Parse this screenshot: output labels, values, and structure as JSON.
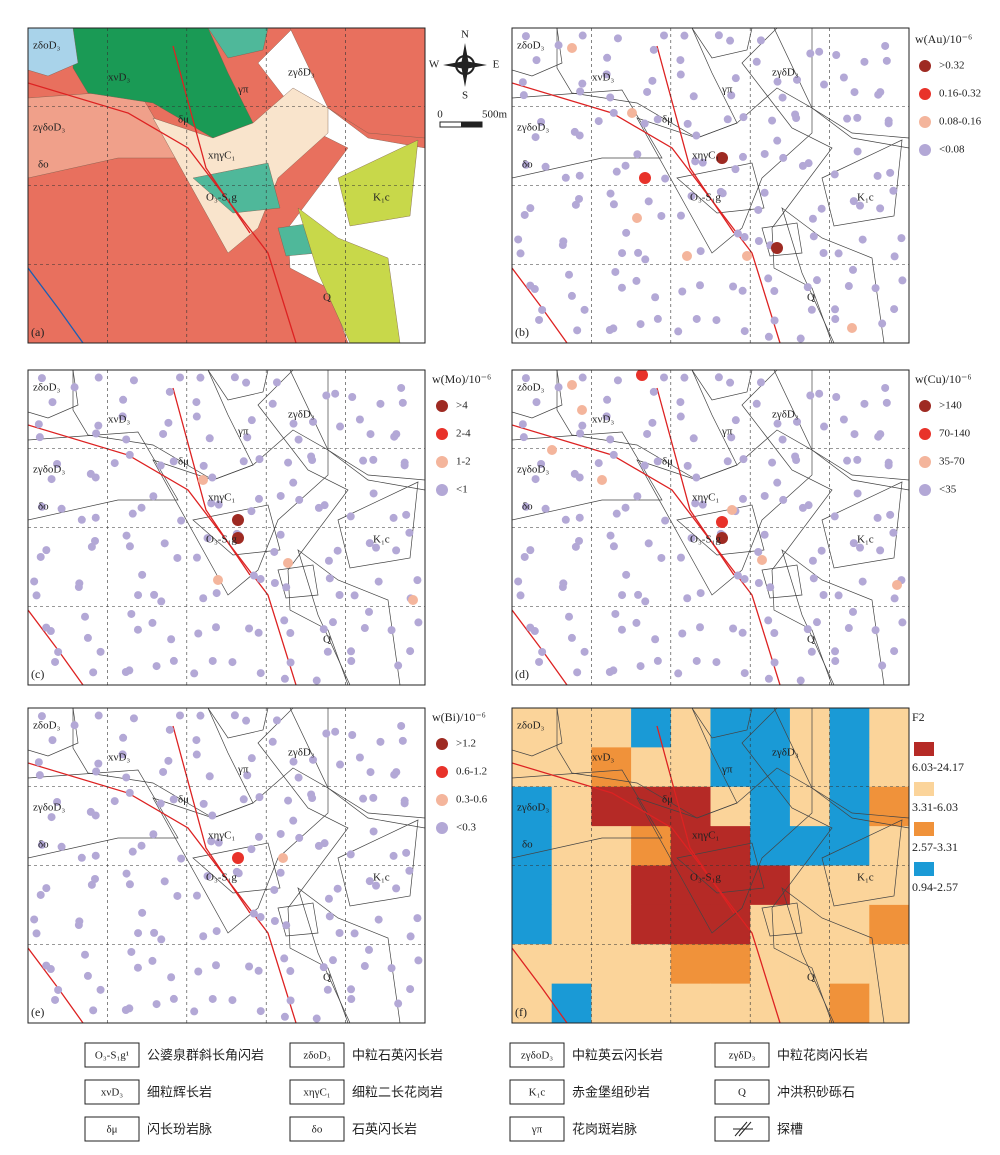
{
  "map_labels": [
    "zδoD₃",
    "xνD₃",
    "zγδoD₃",
    "δo",
    "δμ",
    "γπ",
    "zγδD₃",
    "xηγC₁",
    "O₃-S₁g",
    "K₁c",
    "Q"
  ],
  "panels": [
    {
      "letter": "(a)"
    },
    {
      "letter": "(b)"
    },
    {
      "letter": "(c)"
    },
    {
      "letter": "(d)"
    },
    {
      "letter": "(e)"
    },
    {
      "letter": "(f)"
    }
  ],
  "compass": {
    "north": "N",
    "south": "S",
    "west": "W",
    "east": "E"
  },
  "scale": {
    "start": "0",
    "end": "500m"
  },
  "legends": [
    {
      "title": "w(Au)/10⁻⁶",
      "items": [
        ">0.32",
        "0.16-0.32",
        "0.08-0.16",
        "<0.08"
      ]
    },
    {
      "title": "w(Mo)/10⁻⁶",
      "items": [
        ">4",
        "2-4",
        "1-2",
        "<1"
      ]
    },
    {
      "title": "w(Cu)/10⁻⁶",
      "items": [
        ">140",
        "70-140",
        "35-70",
        "<35"
      ]
    },
    {
      "title": "w(Bi)/10⁻⁶",
      "items": [
        ">1.2",
        "0.6-1.2",
        "0.3-0.6",
        "<0.3"
      ]
    },
    {
      "title": "F2",
      "items": [
        "6.03-24.17",
        "3.31-6.03",
        "2.57-3.31",
        "0.94-2.57"
      ]
    }
  ],
  "key": [
    {
      "symbol": "O₃-S₁g¹",
      "text": "公婆泉群斜长角闪岩"
    },
    {
      "symbol": "zδoD₃",
      "text": "中粒石英闪长岩"
    },
    {
      "symbol": "zγδoD₃",
      "text": "中粒英云闪长岩"
    },
    {
      "symbol": "zγδD₃",
      "text": "中粒花岗闪长岩"
    },
    {
      "symbol": "xνD₃",
      "text": "细粒辉长岩"
    },
    {
      "symbol": "xηγC₁",
      "text": "细粒二长花岗岩"
    },
    {
      "symbol": "K₁c",
      "text": "赤金堡组砂岩"
    },
    {
      "symbol": "Q",
      "text": "冲洪积砂砾石"
    },
    {
      "symbol": "δμ",
      "text": "闪长玢岩脉"
    },
    {
      "symbol": "δo",
      "text": "石英闪长岩"
    },
    {
      "symbol": "γπ",
      "text": "花岗斑岩脉"
    },
    {
      "text": "探槽"
    }
  ]
}
